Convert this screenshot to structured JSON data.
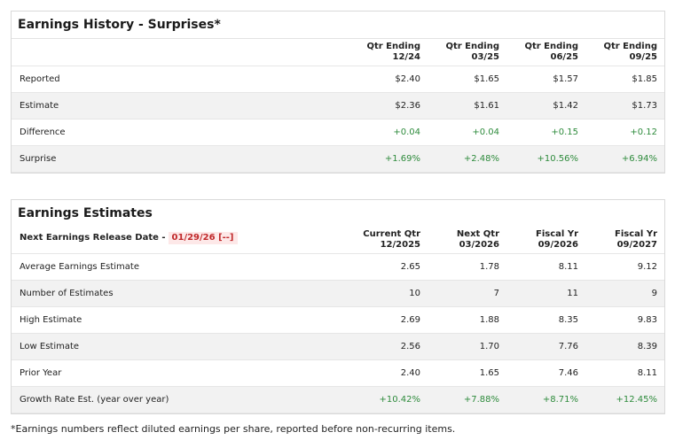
{
  "history": {
    "title": "Earnings History - Surprises*",
    "columns": [
      {
        "line1": "Qtr Ending",
        "line2": "12/24"
      },
      {
        "line1": "Qtr Ending",
        "line2": "03/25"
      },
      {
        "line1": "Qtr Ending",
        "line2": "06/25"
      },
      {
        "line1": "Qtr Ending",
        "line2": "09/25"
      }
    ],
    "rows": [
      {
        "label": "Reported",
        "values": [
          "$2.40",
          "$1.65",
          "$1.57",
          "$1.85"
        ],
        "positive": false
      },
      {
        "label": "Estimate",
        "values": [
          "$2.36",
          "$1.61",
          "$1.42",
          "$1.73"
        ],
        "positive": false
      },
      {
        "label": "Difference",
        "values": [
          "+0.04",
          "+0.04",
          "+0.15",
          "+0.12"
        ],
        "positive": true
      },
      {
        "label": "Surprise",
        "values": [
          "+1.69%",
          "+2.48%",
          "+10.56%",
          "+6.94%"
        ],
        "positive": true
      }
    ]
  },
  "estimates": {
    "title": "Earnings Estimates",
    "release_label": "Next Earnings Release Date -",
    "release_date": "01/29/26 [--]",
    "columns": [
      {
        "line1": "Current Qtr",
        "line2": "12/2025"
      },
      {
        "line1": "Next Qtr",
        "line2": "03/2026"
      },
      {
        "line1": "Fiscal Yr",
        "line2": "09/2026"
      },
      {
        "line1": "Fiscal Yr",
        "line2": "09/2027"
      }
    ],
    "rows": [
      {
        "label": "Average Earnings Estimate",
        "values": [
          "2.65",
          "1.78",
          "8.11",
          "9.12"
        ],
        "positive": false
      },
      {
        "label": "Number of Estimates",
        "values": [
          "10",
          "7",
          "11",
          "9"
        ],
        "positive": false
      },
      {
        "label": "High Estimate",
        "values": [
          "2.69",
          "1.88",
          "8.35",
          "9.83"
        ],
        "positive": false
      },
      {
        "label": "Low Estimate",
        "values": [
          "2.56",
          "1.70",
          "7.76",
          "8.39"
        ],
        "positive": false
      },
      {
        "label": "Prior Year",
        "values": [
          "2.40",
          "1.65",
          "7.46",
          "8.11"
        ],
        "positive": false
      },
      {
        "label": "Growth Rate Est. (year over year)",
        "values": [
          "+10.42%",
          "+7.88%",
          "+8.71%",
          "+12.45%"
        ],
        "positive": true
      }
    ]
  },
  "footnote": "*Earnings numbers reflect diluted earnings per share, reported before non-recurring items."
}
